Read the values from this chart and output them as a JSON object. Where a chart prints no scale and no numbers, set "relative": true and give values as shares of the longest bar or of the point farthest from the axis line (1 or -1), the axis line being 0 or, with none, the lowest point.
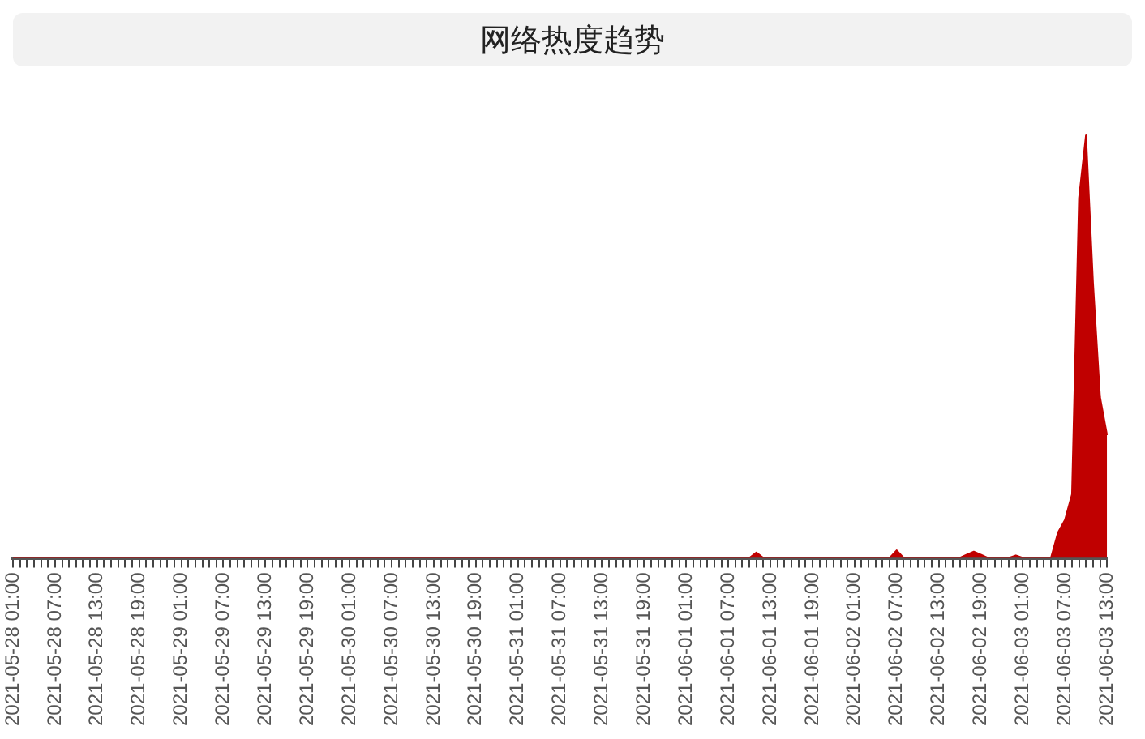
{
  "chart_data": {
    "type": "area",
    "title": "网络热度趋势",
    "relative": true,
    "grid": false,
    "legend": false,
    "categories": [
      "2021-05-28 01:00",
      null,
      null,
      null,
      null,
      null,
      "2021-05-28 07:00",
      null,
      null,
      null,
      null,
      null,
      "2021-05-28 13:00",
      null,
      null,
      null,
      null,
      null,
      "2021-05-28 19:00",
      null,
      null,
      null,
      null,
      null,
      "2021-05-29 01:00",
      null,
      null,
      null,
      null,
      null,
      "2021-05-29 07:00",
      null,
      null,
      null,
      null,
      null,
      "2021-05-29 13:00",
      null,
      null,
      null,
      null,
      null,
      "2021-05-29 19:00",
      null,
      null,
      null,
      null,
      null,
      "2021-05-30 01:00",
      null,
      null,
      null,
      null,
      null,
      "2021-05-30 07:00",
      null,
      null,
      null,
      null,
      null,
      "2021-05-30 13:00",
      null,
      null,
      null,
      null,
      null,
      "2021-05-30 19:00",
      null,
      null,
      null,
      null,
      null,
      "2021-05-31 01:00",
      null,
      null,
      null,
      null,
      null,
      "2021-05-31 07:00",
      null,
      null,
      null,
      null,
      null,
      "2021-05-31 13:00",
      null,
      null,
      null,
      null,
      null,
      "2021-05-31 19:00",
      null,
      null,
      null,
      null,
      null,
      "2021-06-01 01:00",
      null,
      null,
      null,
      null,
      null,
      "2021-06-01 07:00",
      null,
      null,
      null,
      null,
      null,
      "2021-06-01 13:00",
      null,
      null,
      null,
      null,
      null,
      "2021-06-01 19:00",
      null,
      null,
      null,
      null,
      null,
      "2021-06-02 01:00",
      null,
      null,
      null,
      null,
      null,
      "2021-06-02 07:00",
      null,
      null,
      null,
      null,
      null,
      "2021-06-02 13:00",
      null,
      null,
      null,
      null,
      null,
      "2021-06-02 19:00",
      null,
      null,
      null,
      null,
      null,
      "2021-06-03 01:00",
      null,
      null,
      null,
      null,
      null,
      "2021-06-03 07:00",
      null,
      null,
      null,
      null,
      null,
      "2021-06-03 13:00"
    ],
    "series": [
      {
        "color": "#c00000",
        "values": [
          0,
          0,
          0,
          0,
          0,
          0,
          0,
          0,
          0,
          0,
          0,
          0,
          0,
          0,
          0,
          0,
          0,
          0,
          0,
          0,
          0,
          0,
          0,
          0,
          0,
          0,
          0,
          0,
          0,
          0,
          0,
          0,
          0,
          0,
          0,
          0,
          0,
          0,
          0,
          0,
          0,
          0,
          0,
          0,
          0,
          0,
          0,
          0,
          0,
          0,
          0,
          0,
          0,
          0,
          0,
          0,
          0,
          0,
          0,
          0,
          0,
          0,
          0,
          0,
          0,
          0,
          0,
          0,
          0,
          0,
          0,
          0,
          0,
          0,
          0,
          0,
          0,
          0,
          0,
          0,
          0,
          0,
          0,
          0,
          0,
          0,
          0,
          0,
          0,
          0,
          0,
          0,
          0,
          0,
          0,
          0,
          0,
          0,
          0,
          0,
          0,
          0,
          0,
          0,
          0,
          0,
          0.013,
          0,
          0,
          0,
          0,
          0,
          0,
          0,
          0,
          0,
          0,
          0,
          0,
          0,
          0,
          0,
          0,
          0,
          0,
          0,
          0.018,
          0,
          0,
          0,
          0,
          0,
          0,
          0,
          0,
          0,
          0.008,
          0.015,
          0.008,
          0,
          0,
          0,
          0,
          0.006,
          0,
          0,
          0,
          0,
          0,
          0.06,
          0.09,
          0.15,
          0.85,
          1,
          0.65,
          0.38,
          0.29
        ]
      }
    ]
  }
}
